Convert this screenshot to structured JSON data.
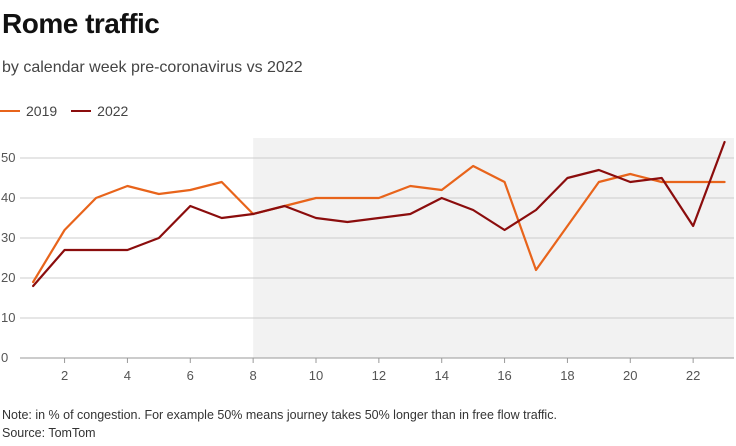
{
  "header": {
    "title": "Rome traffic",
    "subtitle": "by calendar week pre-coronavirus vs 2022"
  },
  "footer": {
    "note": "Note: in % of congestion. For example 50% means journey takes 50% longer than in free flow traffic.",
    "source": "Source: TomTom"
  },
  "colors": {
    "series_2019": "#e8641b",
    "series_2022": "#8b0d0d",
    "shaded_region": "#f2f2f2",
    "gridline": "#cccccc"
  },
  "chart_data": {
    "type": "line",
    "title": "Rome traffic",
    "xlabel": "",
    "ylabel": "",
    "x": [
      1,
      2,
      3,
      4,
      5,
      6,
      7,
      8,
      9,
      10,
      11,
      12,
      13,
      14,
      15,
      16,
      17,
      18,
      19,
      20,
      21,
      22,
      23
    ],
    "xlim": [
      0.9,
      23.3
    ],
    "ylim": [
      0,
      55
    ],
    "xticks": [
      2,
      4,
      6,
      8,
      10,
      12,
      14,
      16,
      18,
      20,
      22
    ],
    "yticks": [
      0,
      10,
      20,
      30,
      40,
      50
    ],
    "shaded_x_range": [
      8,
      23.3
    ],
    "legend_position": "top-left",
    "series": [
      {
        "name": "2019",
        "values": [
          19,
          32,
          40,
          43,
          41,
          42,
          44,
          36,
          38,
          40,
          40,
          40,
          43,
          42,
          48,
          44,
          22,
          33,
          44,
          46,
          44,
          44,
          44
        ]
      },
      {
        "name": "2022",
        "values": [
          18,
          27,
          27,
          27,
          30,
          38,
          35,
          36,
          38,
          35,
          34,
          35,
          36,
          40,
          37,
          32,
          37,
          45,
          47,
          44,
          45,
          33,
          54
        ]
      }
    ]
  }
}
